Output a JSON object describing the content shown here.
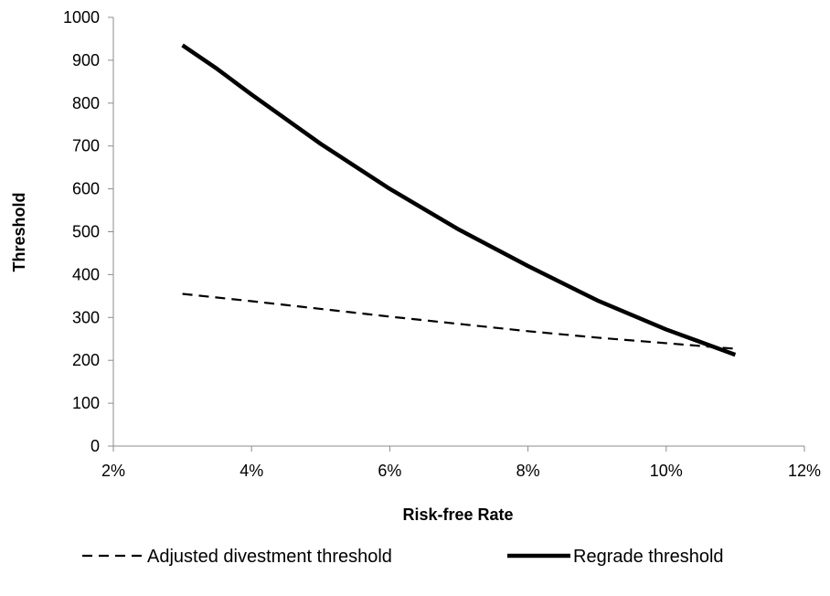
{
  "chart_data": {
    "type": "line",
    "title": "",
    "xlabel": "Risk-free Rate",
    "ylabel": "Threshold",
    "xlim": [
      0.02,
      0.12
    ],
    "ylim": [
      0,
      1000
    ],
    "x_ticks": [
      0.02,
      0.04,
      0.06,
      0.08,
      0.1,
      0.12
    ],
    "x_tick_labels": [
      "2%",
      "4%",
      "6%",
      "8%",
      "10%",
      "12%"
    ],
    "y_ticks": [
      0,
      100,
      200,
      300,
      400,
      500,
      600,
      700,
      800,
      900,
      1000
    ],
    "y_tick_labels": [
      "0",
      "100",
      "200",
      "300",
      "400",
      "500",
      "600",
      "700",
      "800",
      "900",
      "1000"
    ],
    "grid": false,
    "legend_position": "bottom",
    "series": [
      {
        "name": "Adjusted divestment threshold",
        "style": "dashed",
        "color": "#000000",
        "x": [
          0.03,
          0.04,
          0.05,
          0.06,
          0.07,
          0.08,
          0.09,
          0.1,
          0.11
        ],
        "y": [
          355,
          338,
          320,
          302,
          285,
          268,
          253,
          240,
          227
        ]
      },
      {
        "name": "Regrade threshold",
        "style": "solid",
        "color": "#000000",
        "x": [
          0.03,
          0.035,
          0.04,
          0.05,
          0.06,
          0.07,
          0.08,
          0.09,
          0.1,
          0.11
        ],
        "y": [
          935,
          880,
          820,
          705,
          600,
          505,
          420,
          340,
          272,
          213
        ]
      }
    ]
  }
}
